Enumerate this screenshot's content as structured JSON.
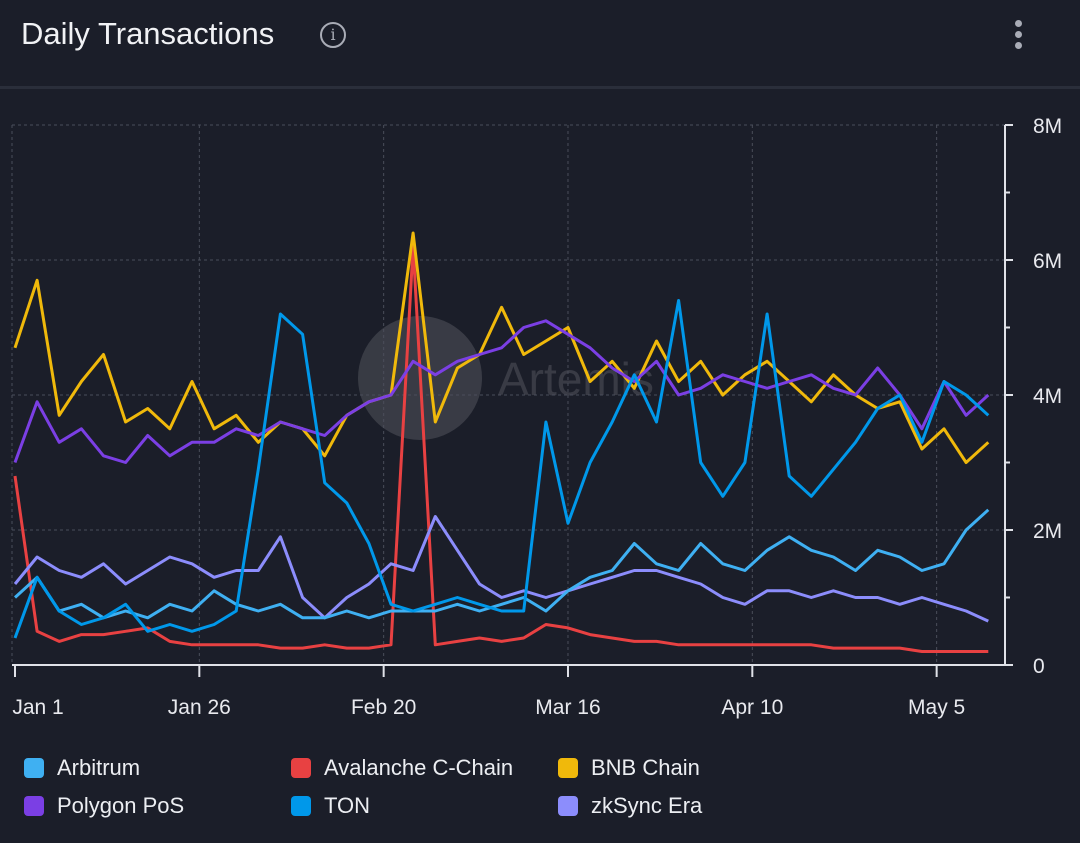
{
  "header": {
    "title": "Daily Transactions",
    "info_icon": "info-icon",
    "menu_icon": "kebab-menu-icon"
  },
  "watermark": "Artemis",
  "chart_data": {
    "type": "line",
    "title": "Daily Transactions",
    "x_unit": "days since Jan 1",
    "x_ticks": [
      {
        "day": 0,
        "label": "Jan 1"
      },
      {
        "day": 25,
        "label": "Jan 26"
      },
      {
        "day": 50,
        "label": "Feb 20"
      },
      {
        "day": 75,
        "label": "Mar 16"
      },
      {
        "day": 100,
        "label": "Apr 10"
      },
      {
        "day": 125,
        "label": "May 5"
      }
    ],
    "y_ticks": [
      {
        "value": 0,
        "label": "0"
      },
      {
        "value": 2,
        "label": "2M"
      },
      {
        "value": 4,
        "label": "4M"
      },
      {
        "value": 6,
        "label": "6M"
      },
      {
        "value": 8,
        "label": "8M"
      }
    ],
    "ylim": [
      0,
      8
    ],
    "xlim": [
      0,
      134
    ],
    "y_unit": "millions",
    "grid": true,
    "legend": "bottom",
    "x_step_days": 3,
    "series": [
      {
        "name": "Arbitrum",
        "color": "#3fb0f2",
        "values": [
          1.0,
          1.3,
          0.8,
          0.9,
          0.7,
          0.8,
          0.7,
          0.9,
          0.8,
          1.1,
          0.9,
          0.8,
          0.9,
          0.7,
          0.7,
          0.8,
          0.7,
          0.8,
          0.8,
          0.8,
          0.9,
          0.8,
          0.9,
          1.0,
          0.8,
          1.1,
          1.3,
          1.4,
          1.8,
          1.5,
          1.4,
          1.8,
          1.5,
          1.4,
          1.7,
          1.9,
          1.7,
          1.6,
          1.4,
          1.7,
          1.6,
          1.4,
          1.5,
          2.0,
          2.3
        ]
      },
      {
        "name": "Avalanche C-Chain",
        "color": "#e84142",
        "values": [
          2.8,
          0.5,
          0.35,
          0.45,
          0.45,
          0.5,
          0.55,
          0.35,
          0.3,
          0.3,
          0.3,
          0.3,
          0.25,
          0.25,
          0.3,
          0.25,
          0.25,
          0.3,
          6.2,
          0.3,
          0.35,
          0.4,
          0.35,
          0.4,
          0.6,
          0.55,
          0.45,
          0.4,
          0.35,
          0.35,
          0.3,
          0.3,
          0.3,
          0.3,
          0.3,
          0.3,
          0.3,
          0.25,
          0.25,
          0.25,
          0.25,
          0.2,
          0.2,
          0.2,
          0.2
        ]
      },
      {
        "name": "BNB Chain",
        "color": "#f0b90b",
        "values": [
          4.7,
          5.7,
          3.7,
          4.2,
          4.6,
          3.6,
          3.8,
          3.5,
          4.2,
          3.5,
          3.7,
          3.3,
          3.6,
          3.5,
          3.1,
          3.7,
          3.9,
          4.0,
          6.4,
          3.6,
          4.4,
          4.6,
          5.3,
          4.6,
          4.8,
          5.0,
          4.2,
          4.5,
          4.1,
          4.8,
          4.2,
          4.5,
          4.0,
          4.3,
          4.5,
          4.2,
          3.9,
          4.3,
          4.0,
          3.8,
          3.9,
          3.2,
          3.5,
          3.0,
          3.3
        ]
      },
      {
        "name": "Polygon PoS",
        "color": "#7b3fe4",
        "values": [
          3.0,
          3.9,
          3.3,
          3.5,
          3.1,
          3.0,
          3.4,
          3.1,
          3.3,
          3.3,
          3.5,
          3.4,
          3.6,
          3.5,
          3.4,
          3.7,
          3.9,
          4.0,
          4.5,
          4.3,
          4.5,
          4.6,
          4.7,
          5.0,
          5.1,
          4.9,
          4.7,
          4.4,
          4.2,
          4.5,
          4.0,
          4.1,
          4.3,
          4.2,
          4.1,
          4.2,
          4.3,
          4.1,
          4.0,
          4.4,
          4.0,
          3.5,
          4.2,
          3.7,
          4.0
        ]
      },
      {
        "name": "TON",
        "color": "#0098ea",
        "values": [
          0.4,
          1.3,
          0.8,
          0.6,
          0.7,
          0.9,
          0.5,
          0.6,
          0.5,
          0.6,
          0.8,
          2.9,
          5.2,
          4.9,
          2.7,
          2.4,
          1.8,
          0.9,
          0.8,
          0.9,
          1.0,
          0.9,
          0.8,
          0.8,
          3.6,
          2.1,
          3.0,
          3.6,
          4.3,
          3.6,
          5.4,
          3.0,
          2.5,
          3.0,
          5.2,
          2.8,
          2.5,
          2.9,
          3.3,
          3.8,
          4.0,
          3.3,
          4.2,
          4.0,
          3.7
        ]
      },
      {
        "name": "zkSync Era",
        "color": "#8c8dfc",
        "values": [
          1.2,
          1.6,
          1.4,
          1.3,
          1.5,
          1.2,
          1.4,
          1.6,
          1.5,
          1.3,
          1.4,
          1.4,
          1.9,
          1.0,
          0.7,
          1.0,
          1.2,
          1.5,
          1.4,
          2.2,
          1.7,
          1.2,
          1.0,
          1.1,
          1.0,
          1.1,
          1.2,
          1.3,
          1.4,
          1.4,
          1.3,
          1.2,
          1.0,
          0.9,
          1.1,
          1.1,
          1.0,
          1.1,
          1.0,
          1.0,
          0.9,
          1.0,
          0.9,
          0.8,
          0.65
        ]
      }
    ]
  }
}
